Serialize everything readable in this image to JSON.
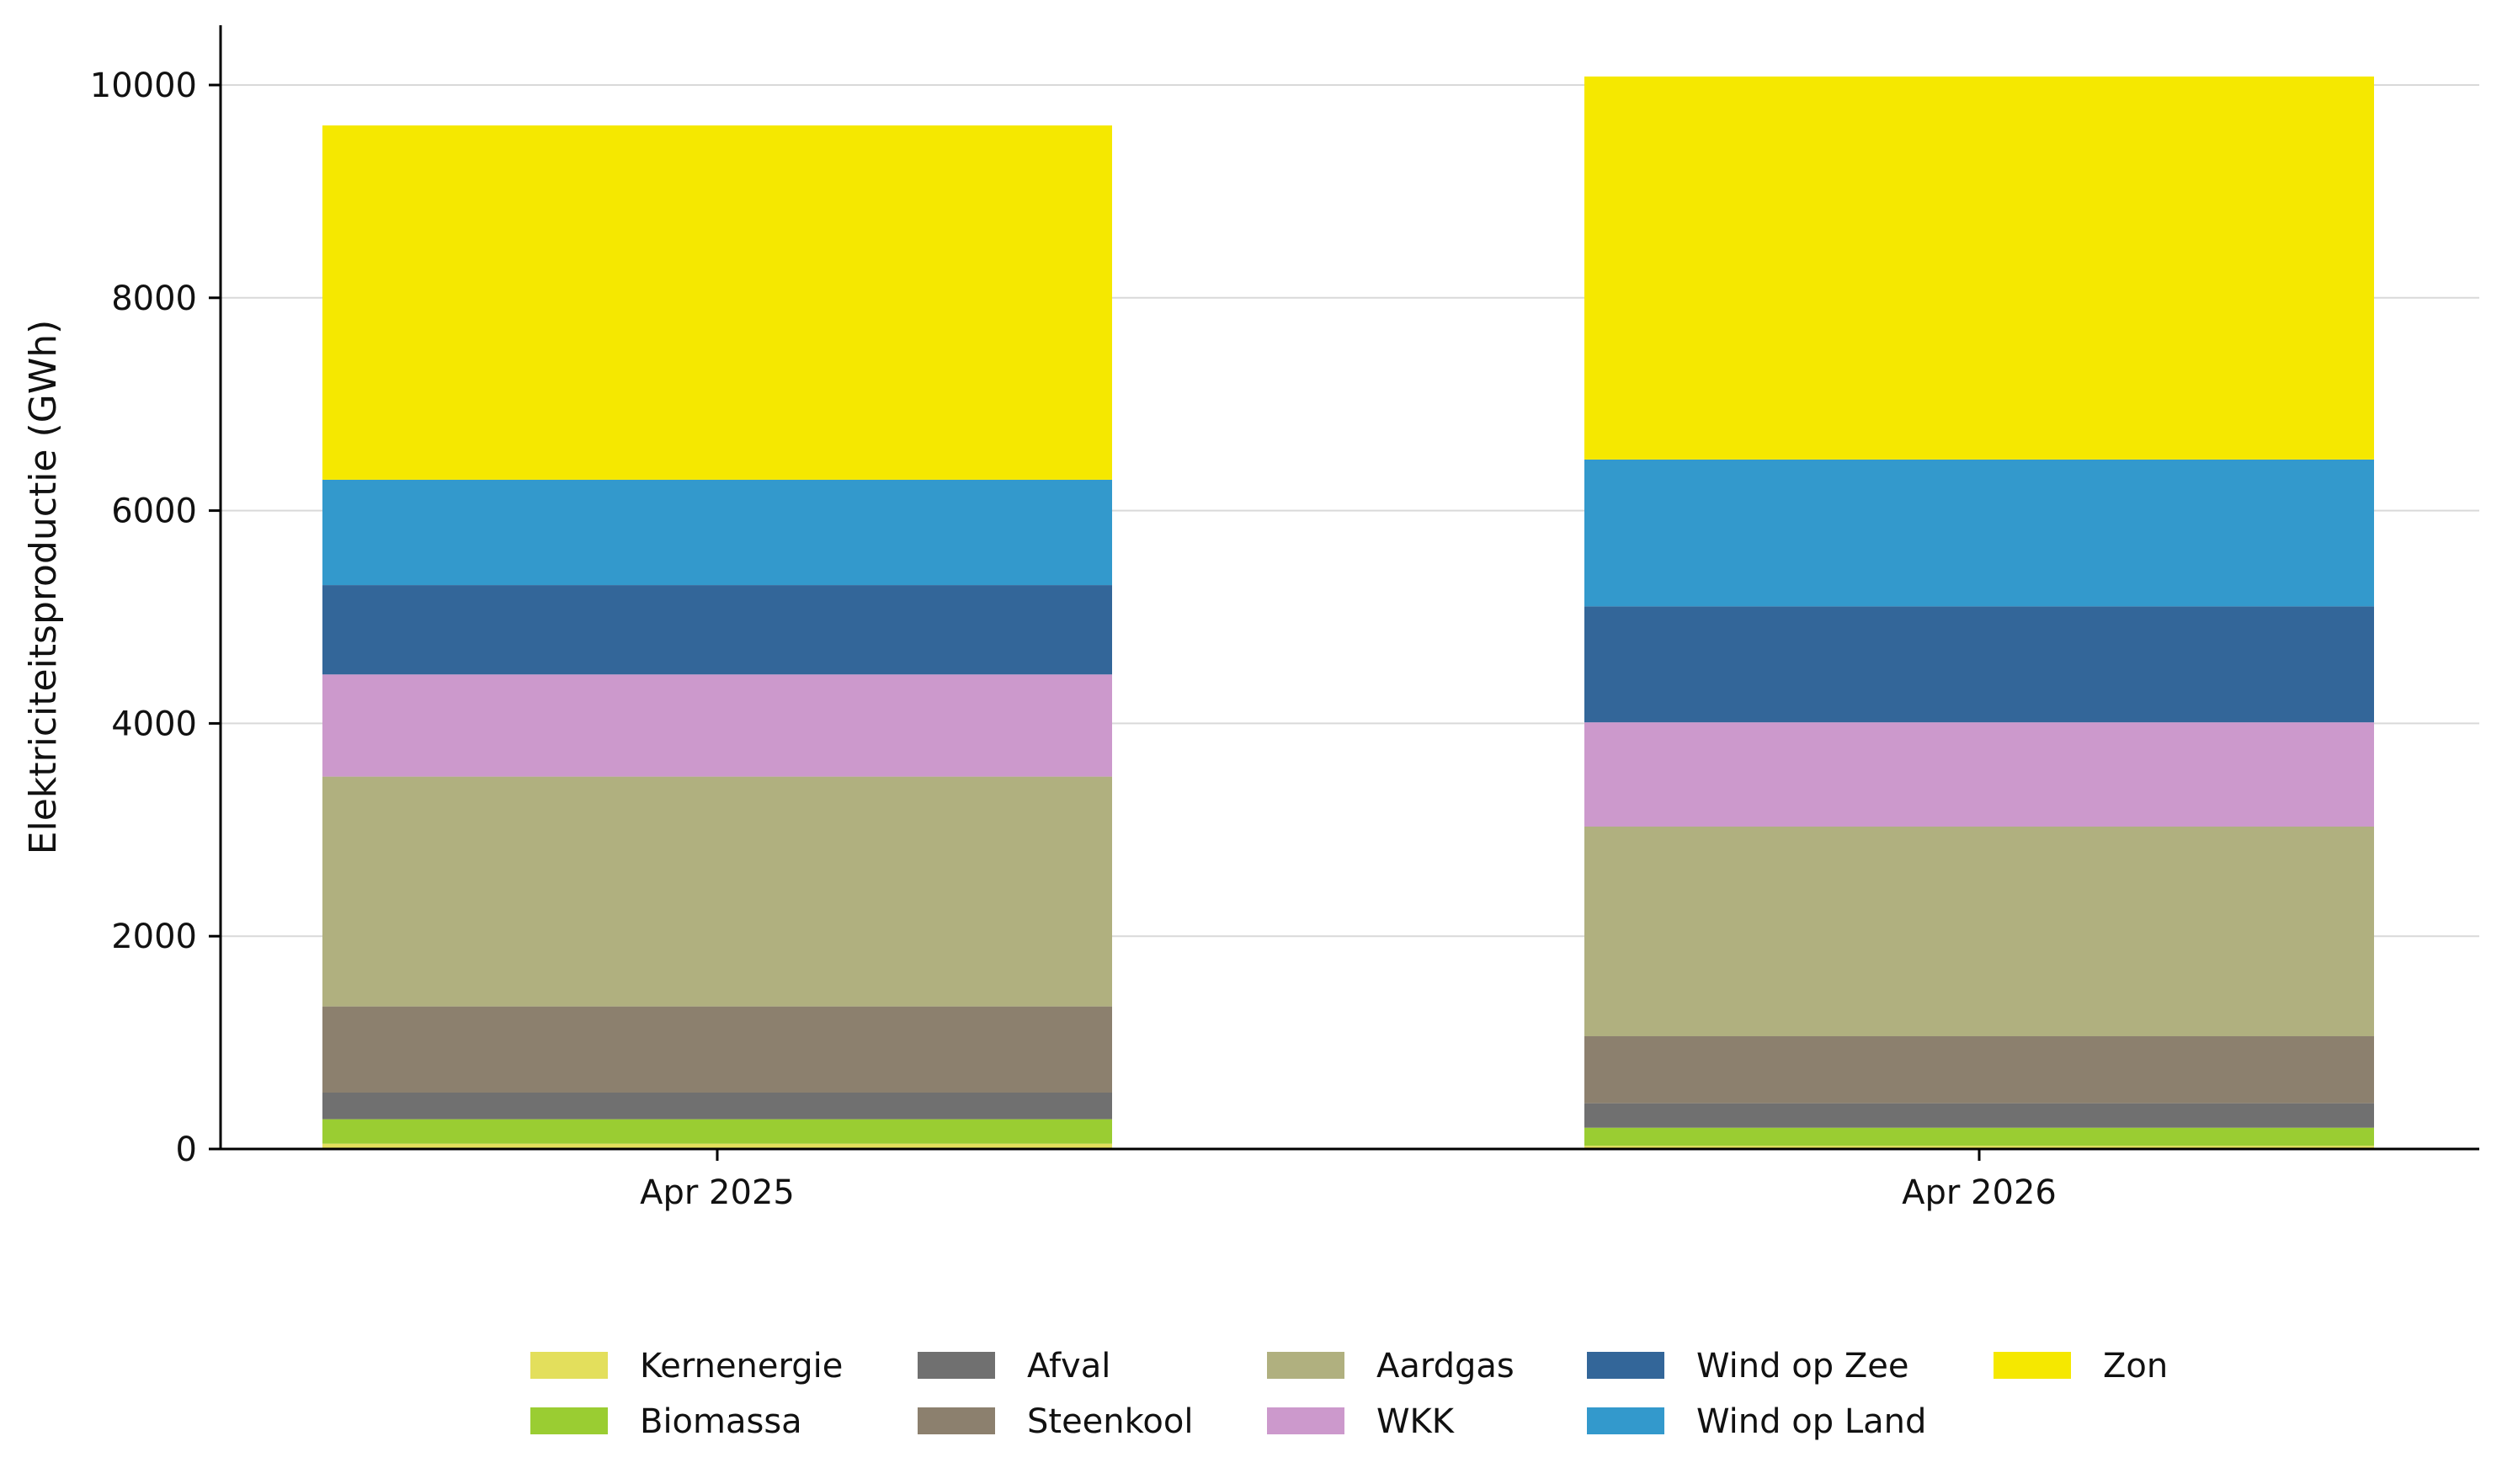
{
  "chart_data": {
    "type": "bar",
    "stacked": true,
    "title": "",
    "xlabel": "",
    "ylabel": "Elektriciteitsproductie (GWh)",
    "ylim": [
      0,
      10500
    ],
    "yticks": [
      0,
      2000,
      4000,
      6000,
      8000,
      10000
    ],
    "grid": true,
    "legend_position": "bottom",
    "categories": [
      "Apr 2025",
      "Apr 2026"
    ],
    "series": [
      {
        "name": "Kernenergie",
        "color": "#e3df5c",
        "values": [
          50,
          30
        ]
      },
      {
        "name": "Biomassa",
        "color": "#9acd32",
        "values": [
          230,
          170
        ]
      },
      {
        "name": "Afval",
        "color": "#707070",
        "values": [
          250,
          230
        ]
      },
      {
        "name": "Steenkool",
        "color": "#8c806e",
        "values": [
          810,
          630
        ]
      },
      {
        "name": "Aardgas",
        "color": "#b0b07f",
        "values": [
          2160,
          1970
        ]
      },
      {
        "name": "WKK",
        "color": "#cc99cc",
        "values": [
          960,
          980
        ]
      },
      {
        "name": "Wind op Zee",
        "color": "#336699",
        "values": [
          840,
          1090
        ]
      },
      {
        "name": "Wind op Land",
        "color": "#3399cc",
        "values": [
          990,
          1380
        ]
      },
      {
        "name": "Zon",
        "color": "#f5e800",
        "values": [
          3330,
          3600
        ]
      }
    ]
  }
}
